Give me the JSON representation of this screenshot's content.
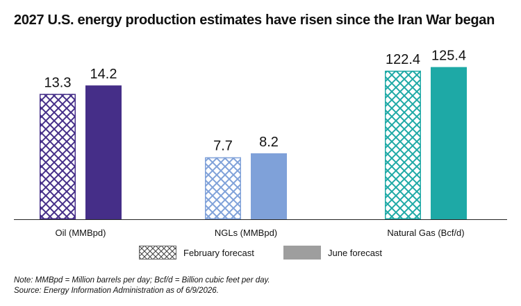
{
  "title": "2027 U.S. energy production estimates have risen since the Iran War began",
  "chart_data": {
    "type": "bar",
    "title": "2027 U.S. energy production estimates have risen since the Iran War began",
    "grid": false,
    "legend_position": "bottom",
    "series_names": [
      "February forecast",
      "June forecast"
    ],
    "groups": [
      {
        "category": "Oil (MMBpd)",
        "color": "#452e88",
        "values": [
          13.3,
          14.2
        ],
        "labels": [
          "13.3",
          "14.2"
        ],
        "scale_max": 18.7
      },
      {
        "category": "NGLs (MMBpd)",
        "color": "#7fa1d9",
        "values": [
          7.7,
          8.2
        ],
        "labels": [
          "7.7",
          "8.2"
        ],
        "scale_max": 21.9
      },
      {
        "category": "Natural Gas (Bcf/d)",
        "color": "#1ea9a6",
        "values": [
          122.4,
          125.4
        ],
        "labels": [
          "122.4",
          "125.4"
        ],
        "scale_max": 145.2
      }
    ]
  },
  "legend": {
    "february_label": "February forecast",
    "june_label": "June forecast",
    "june_color": "#9e9e9e",
    "pattern_color": "#444444"
  },
  "notes": {
    "line1": "Note: MMBpd = Million barrels per day; Bcf/d = Billion cubic feet per day.",
    "line2": "Source: Energy Information Administration as of 6/9/2026."
  }
}
